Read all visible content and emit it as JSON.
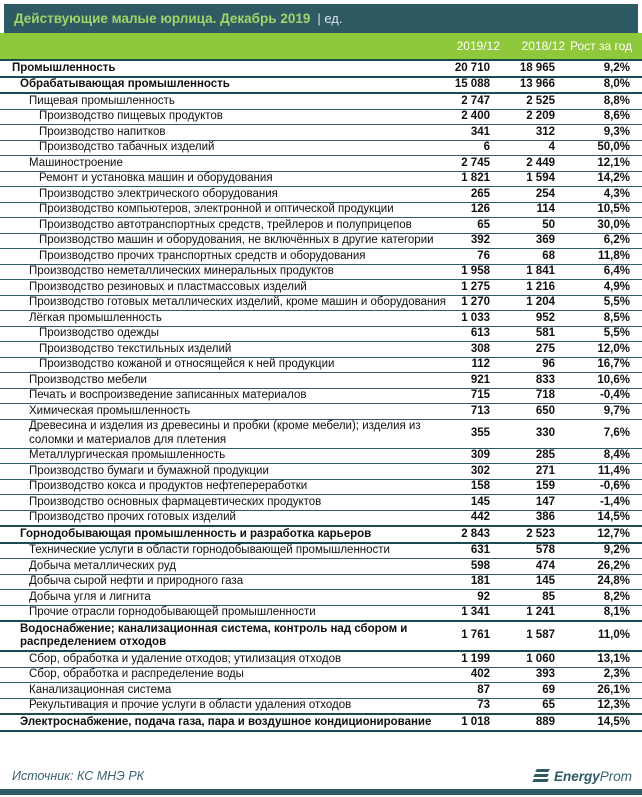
{
  "header": {
    "title": "Действующие малые юрлица. Декабрь 2019",
    "unit_label": "| ед."
  },
  "colors": {
    "header_bg": "#2E5A64",
    "header_title_text": "#A3D469",
    "band_bg": "#90C83C",
    "band_text": "#FFFFFF",
    "row_border": "#2F5E6A",
    "section_border": "#1C4A55",
    "source_text": "#3A6370"
  },
  "table": {
    "columns": [
      "2019/12",
      "2018/12",
      "Рост за год"
    ],
    "rows": [
      {
        "label": "Промышленность",
        "level": 0,
        "bold": true,
        "y2019": "20 710",
        "y2018": "18 965",
        "growth": "9,2%"
      },
      {
        "label": "Обрабатывающая промышленность",
        "level": 1,
        "bold": true,
        "y2019": "15 088",
        "y2018": "13 966",
        "growth": "8,0%"
      },
      {
        "label": "Пищевая промышленность",
        "level": 2,
        "bold": false,
        "y2019": "2 747",
        "y2018": "2 525",
        "growth": "8,8%"
      },
      {
        "label": "Производство пищевых  продуктов",
        "level": 3,
        "bold": false,
        "y2019": "2 400",
        "y2018": "2 209",
        "growth": "8,6%"
      },
      {
        "label": "Производство напитков",
        "level": 3,
        "bold": false,
        "y2019": "341",
        "y2018": "312",
        "growth": "9,3%"
      },
      {
        "label": "Производство табачных изделий",
        "level": 3,
        "bold": false,
        "y2019": "6",
        "y2018": "4",
        "growth": "50,0%"
      },
      {
        "label": "Машиностроение",
        "level": 2,
        "bold": false,
        "y2019": "2 745",
        "y2018": "2 449",
        "growth": "12,1%"
      },
      {
        "label": "Ремонт и установка машин и оборудования",
        "level": 3,
        "bold": false,
        "y2019": "1 821",
        "y2018": "1 594",
        "growth": "14,2%"
      },
      {
        "label": "Производство электрического оборудования",
        "level": 3,
        "bold": false,
        "y2019": "265",
        "y2018": "254",
        "growth": "4,3%"
      },
      {
        "label": "Производство компьютеров, электронной и оптической продукции",
        "level": 3,
        "bold": false,
        "y2019": "126",
        "y2018": "114",
        "growth": "10,5%"
      },
      {
        "label": "Производство автотранспортных средств, трейлеров и полуприцепов",
        "level": 3,
        "bold": false,
        "y2019": "65",
        "y2018": "50",
        "growth": "30,0%"
      },
      {
        "label": "Производство машин и оборудования, не включённых в другие категории",
        "level": 3,
        "bold": false,
        "y2019": "392",
        "y2018": "369",
        "growth": "6,2%"
      },
      {
        "label": "Производство прочих транспортных средств и оборудования",
        "level": 3,
        "bold": false,
        "y2019": "76",
        "y2018": "68",
        "growth": "11,8%"
      },
      {
        "label": "Производство неметаллических минеральных продуктов",
        "level": 2,
        "bold": false,
        "y2019": "1 958",
        "y2018": "1 841",
        "growth": "6,4%"
      },
      {
        "label": "Производство резиновых и пластмассовых изделий",
        "level": 2,
        "bold": false,
        "y2019": "1 275",
        "y2018": "1 216",
        "growth": "4,9%"
      },
      {
        "label": "Производство готовых металлических изделий, кроме машин и оборудования",
        "level": 2,
        "bold": false,
        "y2019": "1 270",
        "y2018": "1 204",
        "growth": "5,5%"
      },
      {
        "label": "Лёгкая промышленность",
        "level": 2,
        "bold": false,
        "y2019": "1 033",
        "y2018": "952",
        "growth": "8,5%"
      },
      {
        "label": "Производство одежды",
        "level": 3,
        "bold": false,
        "y2019": "613",
        "y2018": "581",
        "growth": "5,5%"
      },
      {
        "label": "Производство текстильных изделий",
        "level": 3,
        "bold": false,
        "y2019": "308",
        "y2018": "275",
        "growth": "12,0%"
      },
      {
        "label": "Производство кожаной и относящейся к ней продукции",
        "level": 3,
        "bold": false,
        "y2019": "112",
        "y2018": "96",
        "growth": "16,7%"
      },
      {
        "label": "Производство мебели",
        "level": 2,
        "bold": false,
        "y2019": "921",
        "y2018": "833",
        "growth": "10,6%"
      },
      {
        "label": "Печать и воспроизведение записанных материалов",
        "level": 2,
        "bold": false,
        "y2019": "715",
        "y2018": "718",
        "growth": "-0,4%"
      },
      {
        "label": "Химическая промышленность",
        "level": 2,
        "bold": false,
        "y2019": "713",
        "y2018": "650",
        "growth": "9,7%"
      },
      {
        "label": "Древесина и изделия из древесины и пробки (кроме мебели); изделия из соломки и материалов для плетения",
        "level": 2,
        "bold": false,
        "y2019": "355",
        "y2018": "330",
        "growth": "7,6%"
      },
      {
        "label": "Металлургическая промышленность",
        "level": 2,
        "bold": false,
        "y2019": "309",
        "y2018": "285",
        "growth": "8,4%"
      },
      {
        "label": "Производство бумаги и бумажной продукции",
        "level": 2,
        "bold": false,
        "y2019": "302",
        "y2018": "271",
        "growth": "11,4%"
      },
      {
        "label": "Производство кокса и продуктов нефтепереработки",
        "level": 2,
        "bold": false,
        "y2019": "158",
        "y2018": "159",
        "growth": "-0,6%"
      },
      {
        "label": "Производство основных фармацевтических продуктов",
        "level": 2,
        "bold": false,
        "y2019": "145",
        "y2018": "147",
        "growth": "-1,4%"
      },
      {
        "label": "Производство прочих готовых изделий",
        "level": 2,
        "bold": false,
        "y2019": "442",
        "y2018": "386",
        "growth": "14,5%"
      },
      {
        "label": "Горнодобывающая промышленность и разработка карьеров",
        "level": 1,
        "bold": true,
        "y2019": "2 843",
        "y2018": "2 523",
        "growth": "12,7%"
      },
      {
        "label": "Технические услуги в области горнодобывающей промышленности",
        "level": 2,
        "bold": false,
        "y2019": "631",
        "y2018": "578",
        "growth": "9,2%"
      },
      {
        "label": "Добыча металлических руд",
        "level": 2,
        "bold": false,
        "y2019": "598",
        "y2018": "474",
        "growth": "26,2%"
      },
      {
        "label": "Добыча сырой нефти и природного газа",
        "level": 2,
        "bold": false,
        "y2019": "181",
        "y2018": "145",
        "growth": "24,8%"
      },
      {
        "label": "Добыча угля и лигнита",
        "level": 2,
        "bold": false,
        "y2019": "92",
        "y2018": "85",
        "growth": "8,2%"
      },
      {
        "label": "Прочие отрасли горнодобывающей промышленности",
        "level": 2,
        "bold": false,
        "y2019": "1 341",
        "y2018": "1 241",
        "growth": "8,1%"
      },
      {
        "label": "Водоснабжение; канализационная система, контроль над сбором и распределением отходов",
        "level": 1,
        "bold": true,
        "y2019": "1 761",
        "y2018": "1 587",
        "growth": "11,0%"
      },
      {
        "label": "Сбор, обработка и удаление отходов; утилизация отходов",
        "level": 2,
        "bold": false,
        "y2019": "1 199",
        "y2018": "1 060",
        "growth": "13,1%"
      },
      {
        "label": "Сбор, обработка и распределение воды",
        "level": 2,
        "bold": false,
        "y2019": "402",
        "y2018": "393",
        "growth": "2,3%"
      },
      {
        "label": "Канализационная система",
        "level": 2,
        "bold": false,
        "y2019": "87",
        "y2018": "69",
        "growth": "26,1%"
      },
      {
        "label": "Рекультивация и прочие услуги в области удаления отходов",
        "level": 2,
        "bold": false,
        "y2019": "73",
        "y2018": "65",
        "growth": "12,3%"
      },
      {
        "label": "Электроснабжение, подача газа, пара и воздушное кондиционирование",
        "level": 1,
        "bold": true,
        "y2019": "1 018",
        "y2018": "889",
        "growth": "14,5%"
      }
    ]
  },
  "footer": {
    "source": "Источник: КС МНЭ РК",
    "logo": {
      "energy": "Energy",
      "prom": "Prom"
    }
  }
}
